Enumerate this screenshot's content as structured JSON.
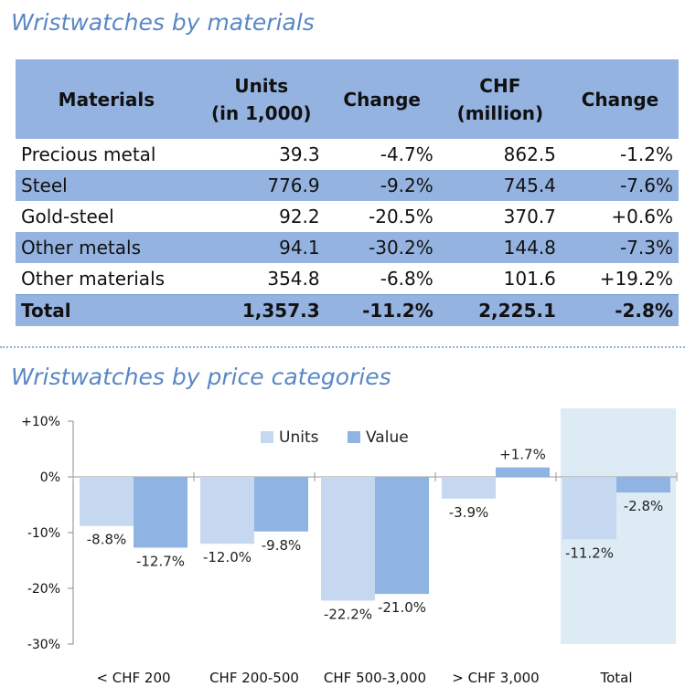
{
  "section1": {
    "title": "Wristwatches by materials"
  },
  "table": {
    "headers": [
      {
        "line1": "Materials",
        "line2": ""
      },
      {
        "line1": "Units",
        "line2": "(in 1,000)"
      },
      {
        "line1": "Change",
        "line2": ""
      },
      {
        "line1": "CHF",
        "line2": "(million)"
      },
      {
        "line1": "Change",
        "line2": ""
      }
    ],
    "rows": [
      [
        "Precious metal",
        "39.3",
        "-4.7%",
        "862.5",
        "-1.2%"
      ],
      [
        "Steel",
        "776.9",
        "-9.2%",
        "745.4",
        "-7.6%"
      ],
      [
        "Gold-steel",
        "92.2",
        "-20.5%",
        "370.7",
        "+0.6%"
      ],
      [
        "Other metals",
        "94.1",
        "-30.2%",
        "144.8",
        "-7.3%"
      ],
      [
        "Other materials",
        "354.8",
        "-6.8%",
        "101.6",
        "+19.2%"
      ]
    ],
    "total": [
      "Total",
      "1,357.3",
      "-11.2%",
      "2,225.1",
      "-2.8%"
    ]
  },
  "section2": {
    "title": "Wristwatches by price categories"
  },
  "chart_data": {
    "type": "bar",
    "categories": [
      "< CHF 200",
      "CHF 200-500",
      "CHF 500-3,000",
      "> CHF 3,000",
      "Total"
    ],
    "series": [
      {
        "name": "Units",
        "values": [
          -8.8,
          -12.0,
          -22.2,
          -3.9,
          -11.2
        ],
        "labels": [
          "-8.8%",
          "-12.0%",
          "-22.2%",
          "-3.9%",
          "-11.2%"
        ],
        "color": "#c6d8f0"
      },
      {
        "name": "Value",
        "values": [
          -12.7,
          -9.8,
          -21.0,
          1.7,
          -2.8
        ],
        "labels": [
          "-12.7%",
          "-9.8%",
          "-21.0%",
          "+1.7%",
          "-2.8%"
        ],
        "color": "#8fb3e2"
      }
    ],
    "ylim": [
      -30,
      10
    ],
    "yticks": [
      10,
      0,
      -10,
      -20,
      -30
    ],
    "ytick_labels": [
      "+10%",
      "0%",
      "-10%",
      "-20%",
      "-30%"
    ],
    "highlight_category": "Total",
    "highlight_color": "#dcebf4",
    "legend_position": "top-center",
    "grid": false
  }
}
